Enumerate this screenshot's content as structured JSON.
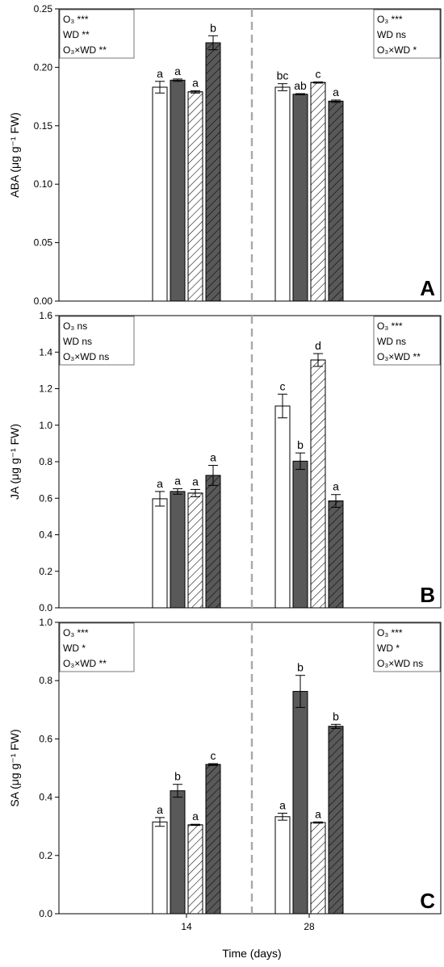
{
  "figure": {
    "xlabel": "Time (days)",
    "x_categories": [
      "14",
      "28"
    ],
    "bar_styles": [
      {
        "fill": "#ffffff",
        "hatch": false
      },
      {
        "fill": "#595959",
        "hatch": false
      },
      {
        "fill": "#ffffff",
        "hatch": true
      },
      {
        "fill": "#595959",
        "hatch": true
      }
    ]
  },
  "chart_data": [
    {
      "type": "bar",
      "panel": "A",
      "ylabel": "ABA (μg g⁻¹ FW)",
      "ylim": [
        0,
        0.25
      ],
      "yticks": [
        "0.00",
        "0.05",
        "0.10",
        "0.15",
        "0.20",
        "0.25"
      ],
      "categories": [
        "14",
        "28"
      ],
      "groups": [
        {
          "values": [
            0.183,
            0.189,
            0.179,
            0.221
          ],
          "errors": [
            0.005,
            0.001,
            0.001,
            0.006
          ],
          "letters": [
            "a",
            "a",
            "a",
            "b"
          ]
        },
        {
          "values": [
            0.183,
            0.177,
            0.187,
            0.171
          ],
          "errors": [
            0.003,
            0.0005,
            0.0005,
            0.001
          ],
          "letters": [
            "bc",
            "ab",
            "c",
            "a"
          ]
        }
      ],
      "stats_left": [
        "O₃ ***",
        "WD **",
        "O₃×WD **"
      ],
      "stats_right": [
        "O₃ ***",
        "WD ns",
        "O₃×WD *"
      ]
    },
    {
      "type": "bar",
      "panel": "B",
      "ylabel": "JA (μg g⁻¹ FW)",
      "ylim": [
        0,
        1.6
      ],
      "yticks": [
        "0.0",
        "0.2",
        "0.4",
        "0.6",
        "0.8",
        "1.0",
        "1.2",
        "1.4",
        "1.6"
      ],
      "categories": [
        "14",
        "28"
      ],
      "groups": [
        {
          "values": [
            0.597,
            0.637,
            0.628,
            0.725
          ],
          "errors": [
            0.04,
            0.015,
            0.02,
            0.055
          ],
          "letters": [
            "a",
            "a",
            "a",
            "a"
          ]
        },
        {
          "values": [
            1.105,
            0.803,
            1.357,
            0.585
          ],
          "errors": [
            0.065,
            0.045,
            0.035,
            0.035
          ],
          "letters": [
            "c",
            "b",
            "d",
            "a"
          ]
        }
      ],
      "stats_left": [
        "O₃ ns",
        "WD ns",
        "O₃×WD ns"
      ],
      "stats_right": [
        "O₃ ***",
        "WD ns",
        "O₃×WD **"
      ]
    },
    {
      "type": "bar",
      "panel": "C",
      "ylabel": "SA (μg g⁻¹ FW)",
      "ylim": [
        0,
        1.0
      ],
      "yticks": [
        "0.0",
        "0.2",
        "0.4",
        "0.6",
        "0.8",
        "1.0"
      ],
      "categories": [
        "14",
        "28"
      ],
      "groups": [
        {
          "values": [
            0.315,
            0.422,
            0.305,
            0.512
          ],
          "errors": [
            0.015,
            0.022,
            0.002,
            0.003
          ],
          "letters": [
            "a",
            "b",
            "a",
            "c"
          ]
        },
        {
          "values": [
            0.333,
            0.763,
            0.313,
            0.643
          ],
          "errors": [
            0.012,
            0.055,
            0.002,
            0.007
          ],
          "letters": [
            "a",
            "b",
            "a",
            "b"
          ]
        }
      ],
      "stats_left": [
        "O₃ ***",
        "WD *",
        "O₃×WD **"
      ],
      "stats_right": [
        "O₃ ***",
        "WD *",
        "O₃×WD ns"
      ]
    }
  ]
}
